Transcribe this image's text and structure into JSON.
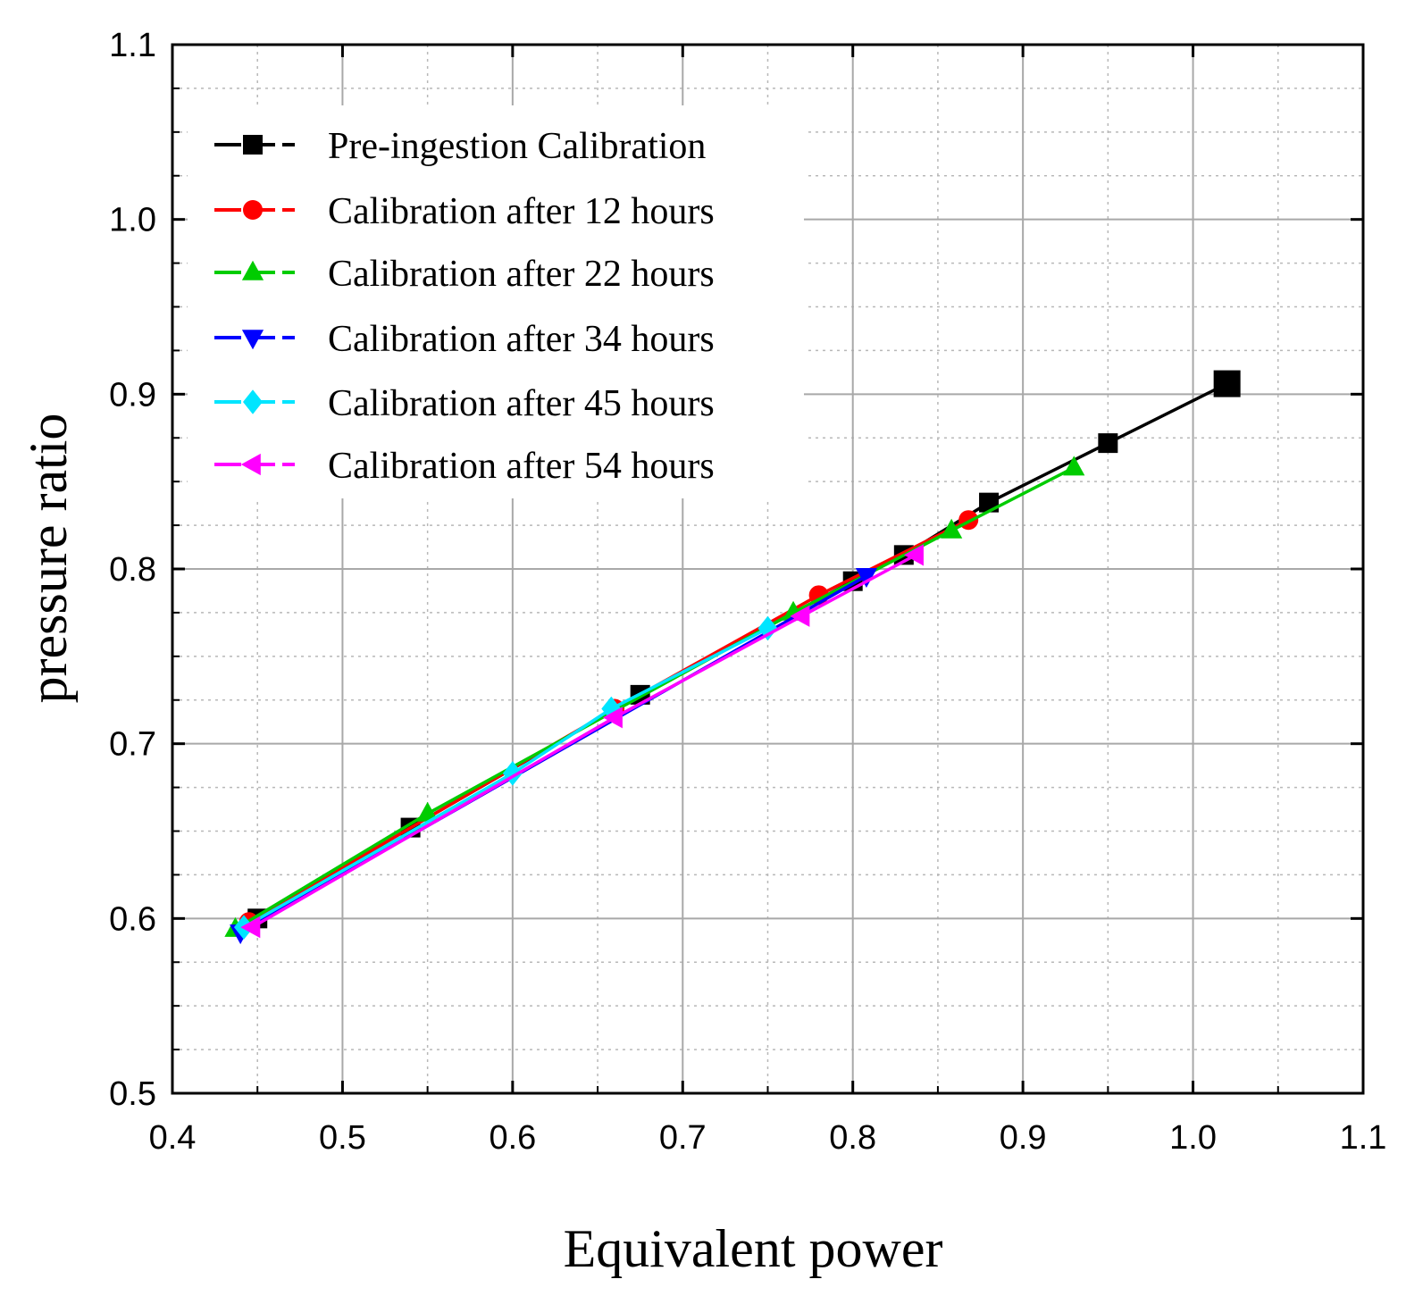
{
  "chart_data": {
    "type": "line",
    "title": "",
    "xlabel": "Equivalent power",
    "ylabel": "pressure ratio",
    "xlim": [
      0.4,
      1.1
    ],
    "ylim": [
      0.5,
      1.1
    ],
    "xticks": [
      "0.4",
      "0.5",
      "0.6",
      "0.7",
      "0.8",
      "0.9",
      "1.0",
      "1.1"
    ],
    "yticks": [
      "0.5",
      "0.6",
      "0.7",
      "0.8",
      "0.9",
      "1.0",
      "1.1"
    ],
    "grid": true,
    "legend_position": "top-left",
    "series": [
      {
        "name": "Pre-ingestion Calibration",
        "color": "#000000",
        "marker": "square",
        "x": [
          0.45,
          0.54,
          0.675,
          0.8,
          0.83,
          0.88,
          0.95,
          1.02
        ],
        "y": [
          0.6,
          0.652,
          0.728,
          0.793,
          0.808,
          0.838,
          0.872,
          0.906
        ]
      },
      {
        "name": "Calibration after 12 hours",
        "color": "#ff0000",
        "marker": "circle",
        "x": [
          0.445,
          0.66,
          0.78,
          0.868
        ],
        "y": [
          0.598,
          0.72,
          0.785,
          0.828
        ]
      },
      {
        "name": "Calibration after 22 hours",
        "color": "#00cc00",
        "marker": "triangle-up",
        "x": [
          0.437,
          0.55,
          0.765,
          0.858,
          0.93
        ],
        "y": [
          0.594,
          0.66,
          0.775,
          0.822,
          0.858
        ]
      },
      {
        "name": "Calibration after 34 hours",
        "color": "#0000ff",
        "marker": "triangle-down",
        "x": [
          0.44,
          0.808
        ],
        "y": [
          0.592,
          0.796
        ]
      },
      {
        "name": "Calibration after 45 hours",
        "color": "#00e5ff",
        "marker": "diamond",
        "x": [
          0.442,
          0.6,
          0.658,
          0.75
        ],
        "y": [
          0.595,
          0.683,
          0.72,
          0.766
        ]
      },
      {
        "name": "Calibration after 54 hours",
        "color": "#ff00ff",
        "marker": "triangle-left",
        "x": [
          0.447,
          0.66,
          0.77,
          0.837
        ],
        "y": [
          0.595,
          0.715,
          0.773,
          0.808
        ]
      }
    ]
  }
}
